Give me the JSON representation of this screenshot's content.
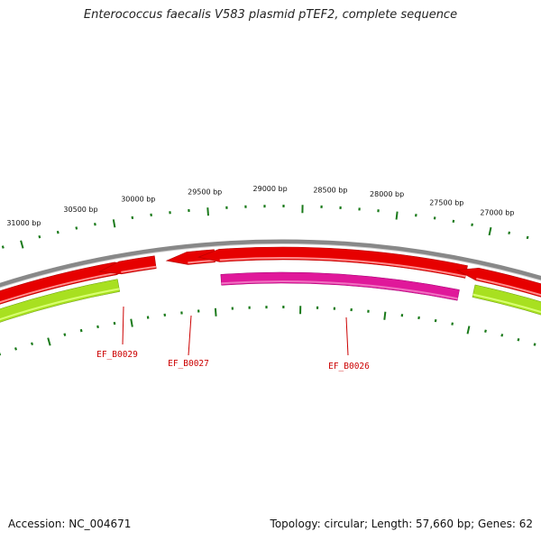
{
  "title": "Enterococcus faecalis V583 plasmid pTEF2, complete sequence",
  "footer": {
    "accession_label": "Accession: NC_004671",
    "stats_label": "Topology: circular; Length: 57,660 bp; Genes: 62"
  },
  "ruler": {
    "labels": [
      "31000 bp",
      "30500 bp",
      "30000 bp",
      "29500 bp",
      "29000 bp",
      "28500 bp",
      "28000 bp",
      "27500 bp",
      "27000 bp"
    ],
    "tick_color": "#1a7a1a"
  },
  "genes": [
    {
      "name": "EF_B0029",
      "color": "#e60000"
    },
    {
      "name": "EF_B0027",
      "color": "#e60000"
    },
    {
      "name": "EF_B0026",
      "color": "#e60000"
    }
  ],
  "tracks": {
    "backbone_color": "#888888",
    "forward_color": "#e60000",
    "pink_color": "#e0189a",
    "green_color": "#a8e020",
    "label_color": "#cc0000"
  }
}
